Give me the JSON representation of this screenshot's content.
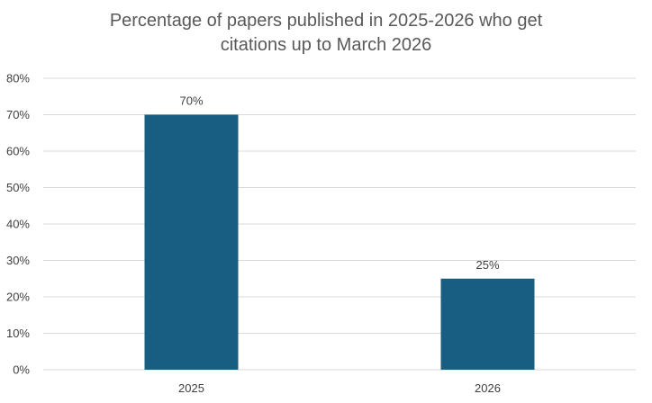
{
  "chart_data": {
    "type": "bar",
    "title_lines": [
      "Percentage of papers published in 2025-2026 who get",
      "citations up to March 2026"
    ],
    "categories": [
      "2025",
      "2026"
    ],
    "values": [
      70,
      25
    ],
    "data_labels": [
      "70%",
      "25%"
    ],
    "y_ticks": [
      0,
      10,
      20,
      30,
      40,
      50,
      60,
      70,
      80
    ],
    "y_tick_labels": [
      "0%",
      "10%",
      "20%",
      "30%",
      "40%",
      "50%",
      "60%",
      "70%",
      "80%"
    ],
    "ylim": [
      0,
      80
    ],
    "grid": true,
    "legend": "none",
    "bar_color": "#175e82",
    "grid_color": "#d9d9d9"
  }
}
